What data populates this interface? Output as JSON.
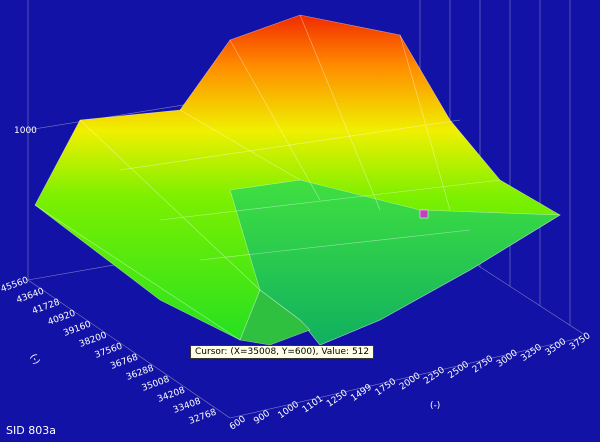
{
  "z_axis": {
    "ticks": [
      "1000"
    ]
  },
  "y_axis": {
    "label": "(-)",
    "ticks": [
      "45560",
      "43640",
      "41728",
      "40920",
      "39160",
      "38200",
      "37560",
      "36768",
      "36288",
      "35008",
      "34208",
      "33408",
      "32768"
    ]
  },
  "x_axis": {
    "label": "(-)",
    "ticks": [
      "600",
      "900",
      "1000",
      "1101",
      "1250",
      "1499",
      "1750",
      "2000",
      "2250",
      "2500",
      "2750",
      "3000",
      "3250",
      "3500",
      "3750"
    ]
  },
  "tooltip": "Cursor: (X=35008, Y=600), Value: 512",
  "status": "SID 803a"
}
